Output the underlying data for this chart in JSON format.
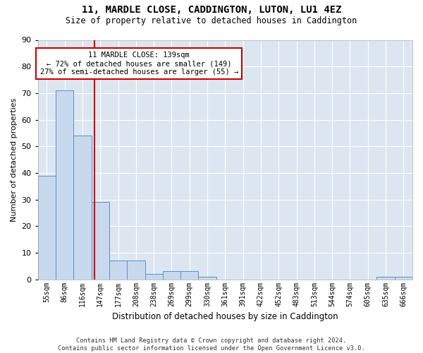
{
  "title": "11, MARDLE CLOSE, CADDINGTON, LUTON, LU1 4EZ",
  "subtitle": "Size of property relative to detached houses in Caddington",
  "xlabel": "Distribution of detached houses by size in Caddington",
  "ylabel": "Number of detached properties",
  "categories": [
    "55sqm",
    "86sqm",
    "116sqm",
    "147sqm",
    "177sqm",
    "208sqm",
    "238sqm",
    "269sqm",
    "299sqm",
    "330sqm",
    "361sqm",
    "391sqm",
    "422sqm",
    "452sqm",
    "483sqm",
    "513sqm",
    "544sqm",
    "574sqm",
    "605sqm",
    "635sqm",
    "666sqm"
  ],
  "values": [
    39,
    71,
    54,
    29,
    7,
    7,
    2,
    3,
    3,
    1,
    0,
    0,
    0,
    0,
    0,
    0,
    0,
    0,
    0,
    1,
    1
  ],
  "bar_color": "#c8d9ed",
  "bar_edge_color": "#5b8fc9",
  "red_line_x": 2.67,
  "annotation_line1": "11 MARDLE CLOSE: 139sqm",
  "annotation_line2": "← 72% of detached houses are smaller (149)",
  "annotation_line3": "27% of semi-detached houses are larger (55) →",
  "annotation_box_color": "#ffffff",
  "annotation_box_edge_color": "#cc0000",
  "ylim": [
    0,
    90
  ],
  "yticks": [
    0,
    10,
    20,
    30,
    40,
    50,
    60,
    70,
    80,
    90
  ],
  "bg_color": "#dce6f1",
  "grid_color": "#ffffff",
  "fig_bg_color": "#ffffff",
  "footer": "Contains HM Land Registry data © Crown copyright and database right 2024.\nContains public sector information licensed under the Open Government Licence v3.0."
}
